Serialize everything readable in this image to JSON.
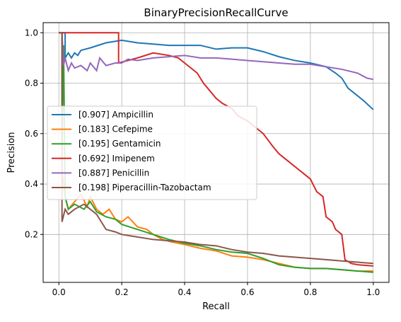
{
  "chart_data": {
    "type": "line",
    "title": "BinaryPrecisionRecallCurve",
    "xlabel": "Recall",
    "ylabel": "Precision",
    "xlim": [
      -0.05,
      1.05
    ],
    "ylim": [
      0.01,
      1.04
    ],
    "xticks": [
      0.0,
      0.2,
      0.4,
      0.6,
      0.8,
      1.0
    ],
    "xtick_labels": [
      "0.0",
      "0.2",
      "0.4",
      "0.6",
      "0.8",
      "1.0"
    ],
    "yticks": [
      0.2,
      0.4,
      0.6,
      0.8,
      1.0
    ],
    "ytick_labels": [
      "0.2",
      "0.4",
      "0.6",
      "0.8",
      "1.0"
    ],
    "grid": true,
    "legend_position": "center-left",
    "series": [
      {
        "name": "[0.907] Ampicillin",
        "color": "#1f77b4",
        "points": [
          [
            0.0,
            1.0
          ],
          [
            0.02,
            1.0
          ],
          [
            0.02,
            0.9
          ],
          [
            0.03,
            0.92
          ],
          [
            0.04,
            0.9
          ],
          [
            0.05,
            0.92
          ],
          [
            0.06,
            0.91
          ],
          [
            0.07,
            0.93
          ],
          [
            0.1,
            0.94
          ],
          [
            0.15,
            0.96
          ],
          [
            0.2,
            0.97
          ],
          [
            0.25,
            0.96
          ],
          [
            0.3,
            0.955
          ],
          [
            0.35,
            0.95
          ],
          [
            0.4,
            0.95
          ],
          [
            0.45,
            0.95
          ],
          [
            0.5,
            0.935
          ],
          [
            0.55,
            0.94
          ],
          [
            0.6,
            0.94
          ],
          [
            0.65,
            0.925
          ],
          [
            0.7,
            0.905
          ],
          [
            0.75,
            0.89
          ],
          [
            0.8,
            0.88
          ],
          [
            0.85,
            0.865
          ],
          [
            0.88,
            0.84
          ],
          [
            0.9,
            0.82
          ],
          [
            0.92,
            0.78
          ],
          [
            0.95,
            0.75
          ],
          [
            0.97,
            0.73
          ],
          [
            1.0,
            0.695
          ]
        ]
      },
      {
        "name": "[0.183] Cefepime",
        "color": "#ff7f0e",
        "points": [
          [
            0.0,
            1.0
          ],
          [
            0.01,
            1.0
          ],
          [
            0.01,
            0.45
          ],
          [
            0.02,
            0.35
          ],
          [
            0.03,
            0.3
          ],
          [
            0.05,
            0.33
          ],
          [
            0.07,
            0.36
          ],
          [
            0.09,
            0.31
          ],
          [
            0.1,
            0.35
          ],
          [
            0.12,
            0.3
          ],
          [
            0.14,
            0.28
          ],
          [
            0.16,
            0.3
          ],
          [
            0.18,
            0.26
          ],
          [
            0.2,
            0.25
          ],
          [
            0.22,
            0.27
          ],
          [
            0.25,
            0.23
          ],
          [
            0.28,
            0.22
          ],
          [
            0.3,
            0.2
          ],
          [
            0.33,
            0.18
          ],
          [
            0.36,
            0.17
          ],
          [
            0.4,
            0.16
          ],
          [
            0.45,
            0.145
          ],
          [
            0.5,
            0.135
          ],
          [
            0.55,
            0.115
          ],
          [
            0.6,
            0.11
          ],
          [
            0.65,
            0.1
          ],
          [
            0.7,
            0.085
          ],
          [
            0.75,
            0.07
          ],
          [
            0.8,
            0.065
          ],
          [
            0.85,
            0.065
          ],
          [
            0.9,
            0.06
          ],
          [
            0.95,
            0.055
          ],
          [
            1.0,
            0.055
          ]
        ]
      },
      {
        "name": "[0.195] Gentamicin",
        "color": "#2ca02c",
        "points": [
          [
            0.0,
            1.0
          ],
          [
            0.01,
            1.0
          ],
          [
            0.01,
            0.55
          ],
          [
            0.015,
            0.95
          ],
          [
            0.02,
            0.35
          ],
          [
            0.03,
            0.3
          ],
          [
            0.05,
            0.32
          ],
          [
            0.08,
            0.3
          ],
          [
            0.1,
            0.33
          ],
          [
            0.12,
            0.29
          ],
          [
            0.15,
            0.27
          ],
          [
            0.18,
            0.26
          ],
          [
            0.2,
            0.24
          ],
          [
            0.25,
            0.22
          ],
          [
            0.3,
            0.2
          ],
          [
            0.35,
            0.18
          ],
          [
            0.4,
            0.165
          ],
          [
            0.45,
            0.155
          ],
          [
            0.5,
            0.14
          ],
          [
            0.55,
            0.13
          ],
          [
            0.6,
            0.125
          ],
          [
            0.65,
            0.105
          ],
          [
            0.7,
            0.08
          ],
          [
            0.75,
            0.07
          ],
          [
            0.8,
            0.065
          ],
          [
            0.85,
            0.065
          ],
          [
            0.9,
            0.06
          ],
          [
            0.95,
            0.055
          ],
          [
            1.0,
            0.05
          ]
        ]
      },
      {
        "name": "[0.692] Imipenem",
        "color": "#d62728",
        "points": [
          [
            0.0,
            1.0
          ],
          [
            0.19,
            1.0
          ],
          [
            0.19,
            0.88
          ],
          [
            0.25,
            0.9
          ],
          [
            0.3,
            0.92
          ],
          [
            0.35,
            0.91
          ],
          [
            0.38,
            0.9
          ],
          [
            0.4,
            0.88
          ],
          [
            0.42,
            0.86
          ],
          [
            0.44,
            0.84
          ],
          [
            0.46,
            0.8
          ],
          [
            0.48,
            0.77
          ],
          [
            0.5,
            0.74
          ],
          [
            0.52,
            0.72
          ],
          [
            0.55,
            0.7
          ],
          [
            0.57,
            0.67
          ],
          [
            0.6,
            0.65
          ],
          [
            0.62,
            0.63
          ],
          [
            0.65,
            0.6
          ],
          [
            0.68,
            0.55
          ],
          [
            0.7,
            0.52
          ],
          [
            0.72,
            0.5
          ],
          [
            0.75,
            0.47
          ],
          [
            0.78,
            0.44
          ],
          [
            0.8,
            0.42
          ],
          [
            0.82,
            0.37
          ],
          [
            0.84,
            0.35
          ],
          [
            0.85,
            0.27
          ],
          [
            0.87,
            0.25
          ],
          [
            0.88,
            0.22
          ],
          [
            0.9,
            0.2
          ],
          [
            0.91,
            0.1
          ],
          [
            0.93,
            0.085
          ],
          [
            0.95,
            0.08
          ],
          [
            1.0,
            0.075
          ]
        ]
      },
      {
        "name": "[0.887] Penicillin",
        "color": "#9467bd",
        "points": [
          [
            0.0,
            1.0
          ],
          [
            0.01,
            1.0
          ],
          [
            0.015,
            0.87
          ],
          [
            0.02,
            0.9
          ],
          [
            0.03,
            0.85
          ],
          [
            0.04,
            0.88
          ],
          [
            0.05,
            0.86
          ],
          [
            0.07,
            0.87
          ],
          [
            0.09,
            0.85
          ],
          [
            0.1,
            0.88
          ],
          [
            0.12,
            0.85
          ],
          [
            0.13,
            0.9
          ],
          [
            0.15,
            0.87
          ],
          [
            0.18,
            0.88
          ],
          [
            0.2,
            0.88
          ],
          [
            0.22,
            0.895
          ],
          [
            0.25,
            0.89
          ],
          [
            0.3,
            0.9
          ],
          [
            0.35,
            0.905
          ],
          [
            0.4,
            0.91
          ],
          [
            0.45,
            0.9
          ],
          [
            0.5,
            0.9
          ],
          [
            0.55,
            0.895
          ],
          [
            0.6,
            0.89
          ],
          [
            0.65,
            0.885
          ],
          [
            0.7,
            0.88
          ],
          [
            0.75,
            0.875
          ],
          [
            0.8,
            0.875
          ],
          [
            0.85,
            0.865
          ],
          [
            0.9,
            0.855
          ],
          [
            0.95,
            0.84
          ],
          [
            0.98,
            0.82
          ],
          [
            1.0,
            0.815
          ]
        ]
      },
      {
        "name": "[0.198] Piperacillin-Tazobactam",
        "color": "#8c564b",
        "points": [
          [
            0.0,
            1.0
          ],
          [
            0.01,
            1.0
          ],
          [
            0.01,
            0.25
          ],
          [
            0.02,
            0.3
          ],
          [
            0.03,
            0.28
          ],
          [
            0.05,
            0.3
          ],
          [
            0.08,
            0.32
          ],
          [
            0.1,
            0.3
          ],
          [
            0.12,
            0.28
          ],
          [
            0.15,
            0.22
          ],
          [
            0.18,
            0.21
          ],
          [
            0.2,
            0.2
          ],
          [
            0.25,
            0.19
          ],
          [
            0.3,
            0.18
          ],
          [
            0.35,
            0.175
          ],
          [
            0.4,
            0.17
          ],
          [
            0.45,
            0.16
          ],
          [
            0.5,
            0.155
          ],
          [
            0.55,
            0.14
          ],
          [
            0.6,
            0.13
          ],
          [
            0.65,
            0.125
          ],
          [
            0.7,
            0.115
          ],
          [
            0.75,
            0.11
          ],
          [
            0.8,
            0.105
          ],
          [
            0.85,
            0.1
          ],
          [
            0.9,
            0.095
          ],
          [
            0.95,
            0.09
          ],
          [
            1.0,
            0.085
          ]
        ]
      }
    ]
  }
}
